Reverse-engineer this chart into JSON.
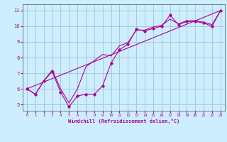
{
  "xlabel": "Windchill (Refroidissement éolien,°C)",
  "background_color": "#cceeff",
  "line_color": "#aa0099",
  "grid_color": "#99bbcc",
  "xlim": [
    -0.5,
    23.5
  ],
  "ylim": [
    4.6,
    11.4
  ],
  "xticks": [
    0,
    1,
    2,
    3,
    4,
    5,
    6,
    7,
    8,
    9,
    10,
    11,
    12,
    13,
    14,
    15,
    16,
    17,
    18,
    19,
    20,
    21,
    22,
    23
  ],
  "yticks": [
    5,
    6,
    7,
    8,
    9,
    10,
    11
  ],
  "line1_x": [
    0,
    1,
    2,
    3,
    4,
    5,
    6,
    7,
    8,
    9,
    10,
    11,
    12,
    13,
    14,
    15,
    16,
    17,
    18,
    19,
    20,
    21,
    22,
    23
  ],
  "line1_y": [
    6.0,
    5.65,
    6.5,
    7.1,
    5.8,
    4.85,
    5.55,
    5.65,
    5.65,
    6.2,
    7.65,
    8.5,
    8.85,
    9.8,
    9.7,
    9.85,
    10.0,
    10.7,
    10.1,
    10.3,
    10.3,
    10.2,
    10.0,
    11.0
  ],
  "line2_x": [
    0,
    23
  ],
  "line2_y": [
    6.0,
    11.0
  ],
  "line3_x": [
    0,
    1,
    2,
    3,
    4,
    5,
    6,
    7,
    8,
    9,
    10,
    11,
    12,
    13,
    14,
    15,
    16,
    17,
    18,
    19,
    20,
    21,
    22,
    23
  ],
  "line3_y": [
    6.0,
    5.65,
    6.5,
    7.2,
    6.0,
    5.1,
    6.0,
    7.4,
    7.8,
    8.2,
    8.1,
    8.75,
    8.95,
    9.75,
    9.75,
    9.95,
    10.05,
    10.45,
    10.15,
    10.35,
    10.35,
    10.25,
    10.1,
    11.0
  ]
}
